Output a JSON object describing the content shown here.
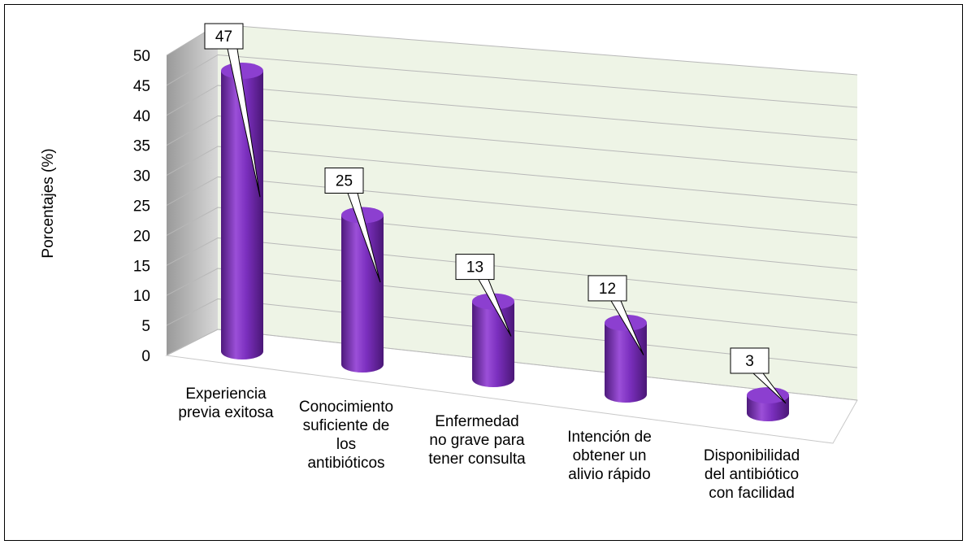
{
  "chart_data": {
    "type": "cylinder",
    "y_axis_label": "Porcentajes (%)",
    "categories": [
      "Experiencia\nprevia exitosa",
      "Conocimiento\nsuficiente de\nlos\nantibióticos",
      "Enfermedad\nno grave para\ntener consulta",
      "Intención de\nobtener un\nalivio rápido",
      "Disponibilidad\ndel antibiótico\ncon facilidad"
    ],
    "values": [
      47,
      25,
      13,
      12,
      3
    ],
    "color": "#7b2fbe",
    "ylim": [
      0,
      50
    ],
    "yticks": [
      0,
      5,
      10,
      15,
      20,
      25,
      30,
      35,
      40,
      45,
      50
    ],
    "grid": true
  }
}
